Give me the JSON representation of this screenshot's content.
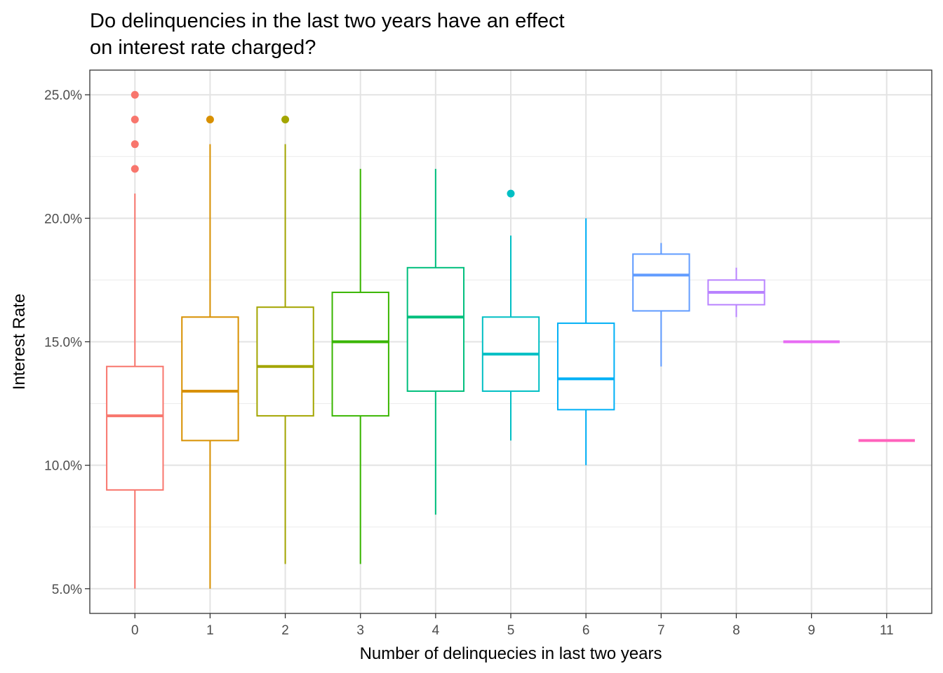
{
  "chart_data": {
    "type": "boxplot",
    "title_lines": [
      "Do delinquencies in the last two years have an effect",
      "on interest rate charged?"
    ],
    "xlabel": "Number of delinquecies in last two years",
    "ylabel": "Interest Rate",
    "ylim": [
      4.0,
      26.0
    ],
    "y_ticks": [
      5,
      10,
      15,
      20,
      25
    ],
    "y_tick_labels": [
      "5.0%",
      "10.0%",
      "15.0%",
      "20.0%",
      "25.0%"
    ],
    "y_minor_ticks": [
      7.5,
      12.5,
      17.5,
      22.5
    ],
    "grid": true,
    "legend": "none",
    "categories": [
      "0",
      "1",
      "2",
      "3",
      "4",
      "5",
      "6",
      "7",
      "8",
      "9",
      "11"
    ],
    "boxes": [
      {
        "category": "0",
        "color": "#F8766D",
        "whisker_low": 5,
        "q1": 9,
        "median": 12,
        "q3": 14,
        "whisker_high": 21,
        "outliers": [
          22,
          23,
          24,
          25
        ]
      },
      {
        "category": "1",
        "color": "#D89000",
        "whisker_low": 5,
        "q1": 11,
        "median": 13,
        "q3": 16,
        "whisker_high": 23,
        "outliers": [
          24
        ]
      },
      {
        "category": "2",
        "color": "#A3A500",
        "whisker_low": 6,
        "q1": 12,
        "median": 14,
        "q3": 16.4,
        "whisker_high": 23,
        "outliers": [
          24
        ]
      },
      {
        "category": "3",
        "color": "#39B600",
        "whisker_low": 6,
        "q1": 12,
        "median": 15,
        "q3": 17,
        "whisker_high": 22,
        "outliers": []
      },
      {
        "category": "4",
        "color": "#00BF7D",
        "whisker_low": 8,
        "q1": 13,
        "median": 16,
        "q3": 18,
        "whisker_high": 22,
        "outliers": []
      },
      {
        "category": "5",
        "color": "#00BFC4",
        "whisker_low": 11,
        "q1": 13,
        "median": 14.5,
        "q3": 16,
        "whisker_high": 19.3,
        "outliers": [
          21
        ]
      },
      {
        "category": "6",
        "color": "#00B0F6",
        "whisker_low": 10,
        "q1": 12.25,
        "median": 13.5,
        "q3": 15.75,
        "whisker_high": 20,
        "outliers": []
      },
      {
        "category": "7",
        "color": "#619CFF",
        "whisker_low": 14,
        "q1": 16.25,
        "median": 17.7,
        "q3": 18.55,
        "whisker_high": 19,
        "outliers": []
      },
      {
        "category": "8",
        "color": "#B983FF",
        "whisker_low": 16,
        "q1": 16.5,
        "median": 17,
        "q3": 17.5,
        "whisker_high": 18,
        "outliers": []
      },
      {
        "category": "9",
        "color": "#E76BF3",
        "whisker_low": 15,
        "q1": 15,
        "median": 15,
        "q3": 15,
        "whisker_high": 15,
        "outliers": []
      },
      {
        "category": "11",
        "color": "#FF62BC",
        "whisker_low": 11,
        "q1": 11,
        "median": 11,
        "q3": 11,
        "whisker_high": 11,
        "outliers": []
      }
    ]
  }
}
